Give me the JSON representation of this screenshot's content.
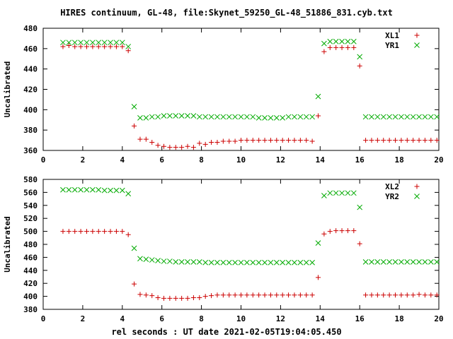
{
  "title": "HIRES continuum, GL-48, file:Skynet_59250_GL-48_51886_831.cyb.txt",
  "xlabel": "rel seconds : UT date 2021-02-05T19:04:05.450",
  "colors": {
    "L": "#cc0000",
    "R": "#00aa00",
    "axis": "#000000",
    "grid": "#000000"
  },
  "chart_data": [
    {
      "type": "scatter",
      "ylabel": "Uncalibrated",
      "xlim": [
        0,
        20
      ],
      "ylim": [
        360,
        480
      ],
      "xticks": [
        0,
        2,
        4,
        6,
        8,
        10,
        12,
        14,
        16,
        18,
        20
      ],
      "yticks": [
        360,
        380,
        400,
        420,
        440,
        460,
        480
      ],
      "legend": "top-right",
      "series": [
        {
          "name": "XL1",
          "marker": "plus",
          "color": "#cc0000",
          "x": [
            1.0,
            1.3,
            1.6,
            1.9,
            2.2,
            2.5,
            2.8,
            3.1,
            3.4,
            3.7,
            4.0,
            4.3,
            4.6,
            4.9,
            5.2,
            5.5,
            5.8,
            6.1,
            6.4,
            6.7,
            7.0,
            7.3,
            7.6,
            7.9,
            8.2,
            8.5,
            8.8,
            9.1,
            9.4,
            9.7,
            10.0,
            10.3,
            10.6,
            10.9,
            11.2,
            11.5,
            11.8,
            12.1,
            12.4,
            12.7,
            13.0,
            13.3,
            13.6,
            13.9,
            14.2,
            14.5,
            14.8,
            15.1,
            15.4,
            15.7,
            16.0,
            16.3,
            16.6,
            16.9,
            17.2,
            17.5,
            17.8,
            18.1,
            18.4,
            18.7,
            19.0,
            19.3,
            19.6,
            19.9
          ],
          "y": [
            462,
            463,
            462,
            462,
            462,
            462,
            462,
            462,
            462,
            462,
            462,
            458,
            384,
            371,
            371,
            368,
            365,
            364,
            363,
            363,
            363,
            364,
            363,
            367,
            366,
            368,
            368,
            369,
            369,
            369,
            370,
            370,
            370,
            370,
            370,
            370,
            370,
            370,
            370,
            370,
            370,
            370,
            369,
            394,
            457,
            461,
            461,
            461,
            461,
            461,
            443,
            370,
            370,
            370,
            370,
            370,
            370,
            370,
            370,
            370,
            370,
            370,
            370,
            370
          ]
        },
        {
          "name": "YR1",
          "marker": "cross",
          "color": "#00aa00",
          "x": [
            1.0,
            1.3,
            1.6,
            1.9,
            2.2,
            2.5,
            2.8,
            3.1,
            3.4,
            3.7,
            4.0,
            4.3,
            4.6,
            4.9,
            5.2,
            5.5,
            5.8,
            6.1,
            6.4,
            6.7,
            7.0,
            7.3,
            7.6,
            7.9,
            8.2,
            8.5,
            8.8,
            9.1,
            9.4,
            9.7,
            10.0,
            10.3,
            10.6,
            10.9,
            11.2,
            11.5,
            11.8,
            12.1,
            12.4,
            12.7,
            13.0,
            13.3,
            13.6,
            13.9,
            14.2,
            14.5,
            14.8,
            15.1,
            15.4,
            15.7,
            16.0,
            16.3,
            16.6,
            16.9,
            17.2,
            17.5,
            17.8,
            18.1,
            18.4,
            18.7,
            19.0,
            19.3,
            19.6,
            19.9
          ],
          "y": [
            466,
            466,
            466,
            466,
            466,
            466,
            466,
            466,
            466,
            466,
            466,
            462,
            403,
            392,
            392,
            393,
            393,
            394,
            394,
            394,
            394,
            394,
            394,
            393,
            393,
            393,
            393,
            393,
            393,
            393,
            393,
            393,
            393,
            392,
            392,
            392,
            392,
            392,
            393,
            393,
            393,
            393,
            393,
            413,
            465,
            467,
            467,
            467,
            467,
            467,
            452,
            393,
            393,
            393,
            393,
            393,
            393,
            393,
            393,
            393,
            393,
            393,
            393,
            393
          ]
        }
      ]
    },
    {
      "type": "scatter",
      "ylabel": "Uncalibrated",
      "xlim": [
        0,
        20
      ],
      "ylim": [
        380,
        580
      ],
      "xticks": [
        0,
        2,
        4,
        6,
        8,
        10,
        12,
        14,
        16,
        18,
        20
      ],
      "yticks": [
        380,
        400,
        420,
        440,
        460,
        480,
        500,
        520,
        540,
        560,
        580
      ],
      "legend": "top-right",
      "series": [
        {
          "name": "XL2",
          "marker": "plus",
          "color": "#cc0000",
          "x": [
            1.0,
            1.3,
            1.6,
            1.9,
            2.2,
            2.5,
            2.8,
            3.1,
            3.4,
            3.7,
            4.0,
            4.3,
            4.6,
            4.9,
            5.2,
            5.5,
            5.8,
            6.1,
            6.4,
            6.7,
            7.0,
            7.3,
            7.6,
            7.9,
            8.2,
            8.5,
            8.8,
            9.1,
            9.4,
            9.7,
            10.0,
            10.3,
            10.6,
            10.9,
            11.2,
            11.5,
            11.8,
            12.1,
            12.4,
            12.7,
            13.0,
            13.3,
            13.6,
            13.9,
            14.2,
            14.5,
            14.8,
            15.1,
            15.4,
            15.7,
            16.0,
            16.3,
            16.6,
            16.9,
            17.2,
            17.5,
            17.8,
            18.1,
            18.4,
            18.7,
            19.0,
            19.3,
            19.6,
            19.9
          ],
          "y": [
            500,
            500,
            500,
            500,
            500,
            500,
            500,
            500,
            500,
            500,
            500,
            495,
            419,
            403,
            402,
            401,
            398,
            397,
            397,
            397,
            397,
            397,
            398,
            398,
            400,
            401,
            402,
            402,
            402,
            402,
            402,
            402,
            402,
            402,
            402,
            402,
            402,
            402,
            402,
            402,
            402,
            402,
            402,
            429,
            496,
            500,
            501,
            501,
            501,
            501,
            481,
            402,
            402,
            402,
            402,
            402,
            402,
            402,
            402,
            402,
            403,
            402,
            402,
            402
          ]
        },
        {
          "name": "YR2",
          "marker": "cross",
          "color": "#00aa00",
          "x": [
            1.0,
            1.3,
            1.6,
            1.9,
            2.2,
            2.5,
            2.8,
            3.1,
            3.4,
            3.7,
            4.0,
            4.3,
            4.6,
            4.9,
            5.2,
            5.5,
            5.8,
            6.1,
            6.4,
            6.7,
            7.0,
            7.3,
            7.6,
            7.9,
            8.2,
            8.5,
            8.8,
            9.1,
            9.4,
            9.7,
            10.0,
            10.3,
            10.6,
            10.9,
            11.2,
            11.5,
            11.8,
            12.1,
            12.4,
            12.7,
            13.0,
            13.3,
            13.6,
            13.9,
            14.2,
            14.5,
            14.8,
            15.1,
            15.4,
            15.7,
            16.0,
            16.3,
            16.6,
            16.9,
            17.2,
            17.5,
            17.8,
            18.1,
            18.4,
            18.7,
            19.0,
            19.3,
            19.6,
            19.9
          ],
          "y": [
            564,
            564,
            564,
            564,
            564,
            564,
            564,
            563,
            563,
            563,
            563,
            558,
            474,
            458,
            457,
            456,
            455,
            454,
            454,
            453,
            453,
            453,
            453,
            453,
            452,
            452,
            452,
            452,
            452,
            452,
            452,
            452,
            452,
            452,
            452,
            452,
            452,
            452,
            452,
            452,
            452,
            452,
            452,
            482,
            555,
            559,
            559,
            559,
            559,
            559,
            537,
            453,
            453,
            453,
            453,
            453,
            453,
            453,
            453,
            453,
            453,
            453,
            453,
            453
          ]
        }
      ]
    }
  ]
}
